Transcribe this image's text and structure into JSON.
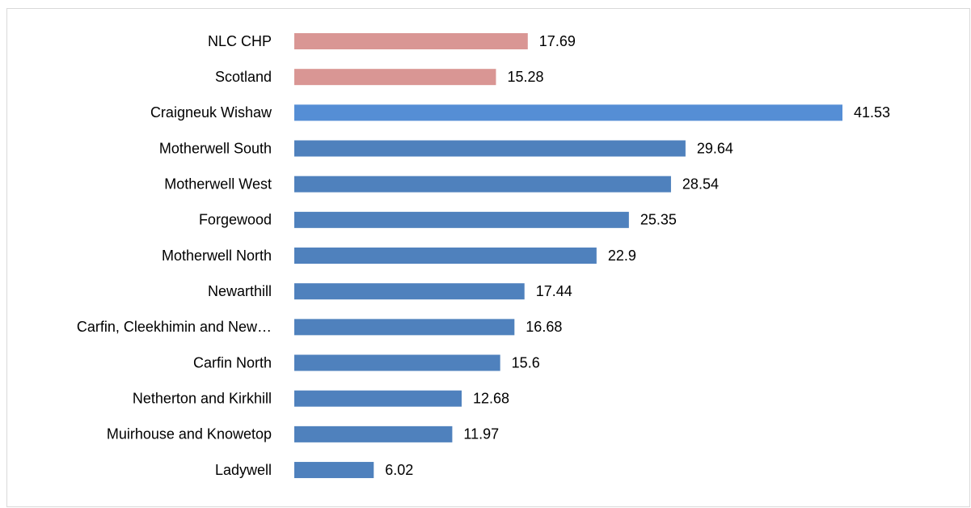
{
  "chart_data": {
    "type": "bar",
    "orientation": "horizontal",
    "categories": [
      "NLC CHP",
      "Scotland",
      "Craigneuk Wishaw",
      "Motherwell South",
      "Motherwell West",
      "Forgewood",
      "Motherwell North",
      "Newarthill",
      "Carfin, Cleekhimin and New…",
      "Carfin North",
      "Netherton and Kirkhill",
      "Muirhouse and Knowetop",
      "Ladywell"
    ],
    "values": [
      17.69,
      15.28,
      41.53,
      29.64,
      28.54,
      25.35,
      22.9,
      17.44,
      16.68,
      15.6,
      12.68,
      11.97,
      6.02
    ],
    "colors": [
      "#d99694",
      "#d99694",
      "#558ed5",
      "#4f81bd",
      "#4f81bd",
      "#4f81bd",
      "#4f81bd",
      "#4f81bd",
      "#4f81bd",
      "#4f81bd",
      "#4f81bd",
      "#4f81bd",
      "#4f81bd"
    ],
    "data_labels": true
  }
}
